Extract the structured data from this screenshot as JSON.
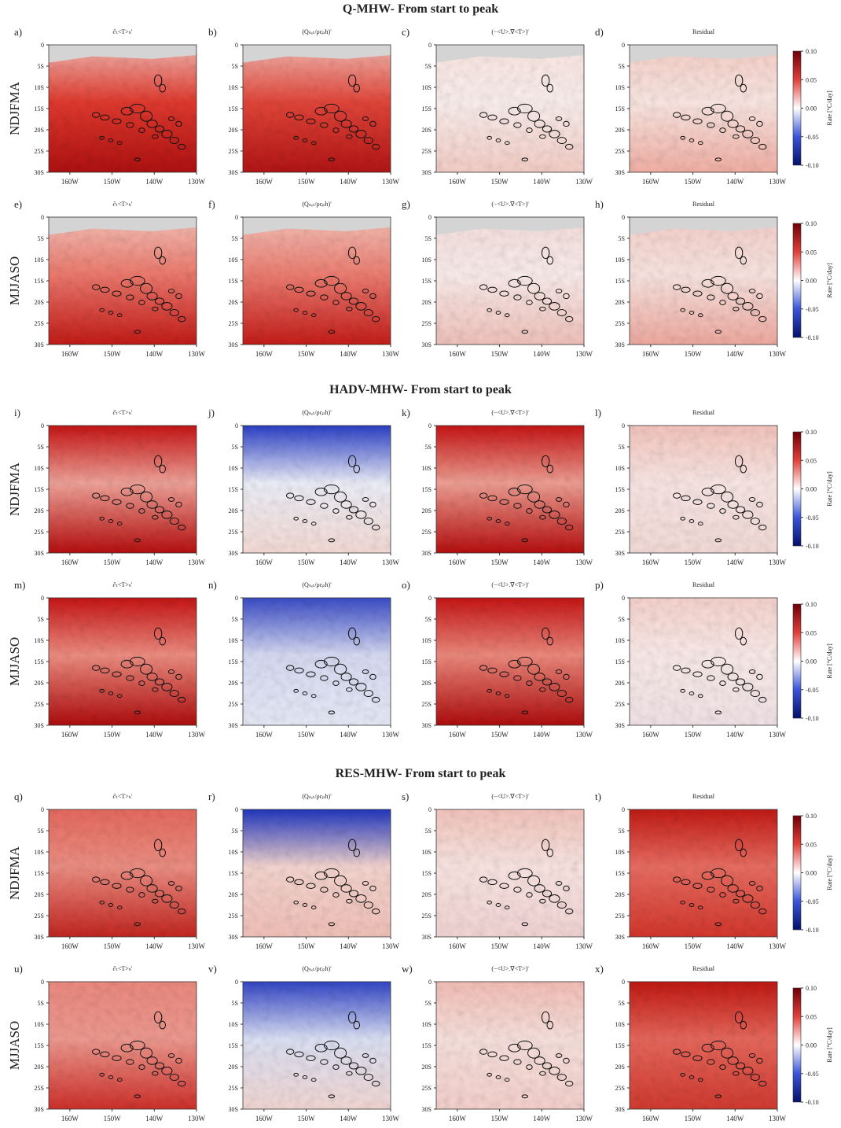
{
  "sections": [
    {
      "title": "Q-MHW- From start to peak",
      "rows": [
        {
          "label": "NDJFMA",
          "letters": [
            "a)",
            "b)",
            "c)",
            "d)"
          ]
        },
        {
          "label": "MJJASO",
          "letters": [
            "e)",
            "f)",
            "g)",
            "h)"
          ]
        }
      ]
    },
    {
      "title": "HADV-MHW- From start to peak",
      "rows": [
        {
          "label": "NDJFMA",
          "letters": [
            "i)",
            "j)",
            "k)",
            "l)"
          ]
        },
        {
          "label": "MJJASO",
          "letters": [
            "m)",
            "n)",
            "o)",
            "p)"
          ]
        }
      ]
    },
    {
      "title": "RES-MHW- From start to peak",
      "rows": [
        {
          "label": "NDJFMA",
          "letters": [
            "q)",
            "r)",
            "s)",
            "t)"
          ]
        },
        {
          "label": "MJJASO",
          "letters": [
            "u)",
            "v)",
            "w)",
            "x)"
          ]
        }
      ]
    }
  ],
  "column_titles": [
    "∂ₜ<T>ₕ'",
    "(Qₙₑₜ/ρcₚh)'",
    "(−<U>.∇<T>)'",
    "Residual"
  ],
  "lat_ticks": [
    "0",
    "5S",
    "10S",
    "15S",
    "20S",
    "25S",
    "30S"
  ],
  "lon_ticks": [
    "160W",
    "150W",
    "140W",
    "130W"
  ],
  "colorbar": {
    "label": "Rate [°C/day]",
    "lim": [
      -0.1,
      0.1
    ],
    "ticks": [
      {
        "value": 0.1,
        "label": "0.10"
      },
      {
        "value": 0.05,
        "label": "0.05"
      },
      {
        "value": 0,
        "label": "0.00"
      },
      {
        "value": -0.05,
        "label": "-0.05"
      },
      {
        "value": -0.1,
        "label": "-0.10"
      }
    ]
  }
}
